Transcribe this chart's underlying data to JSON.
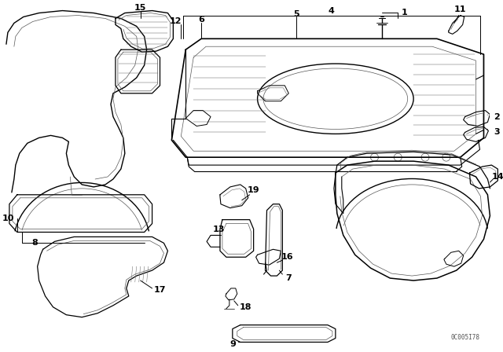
{
  "bg_color": "#ffffff",
  "line_color": "#000000",
  "fig_width": 6.4,
  "fig_height": 4.48,
  "dpi": 100,
  "diagram_code": "0C005I78",
  "label_fs": 8,
  "lw_main": 0.8,
  "lw_thin": 0.4,
  "lw_thick": 1.1
}
